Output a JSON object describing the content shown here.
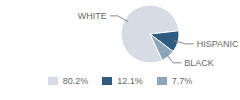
{
  "chart_data": {
    "type": "pie",
    "categories": [
      "WHITE",
      "HISPANIC",
      "BLACK"
    ],
    "values": [
      80.2,
      12.1,
      7.7
    ],
    "value_labels": [
      "80.2%",
      "12.1%",
      "7.7%"
    ],
    "colors": [
      "#d6dbe4",
      "#2f5b80",
      "#8da5bb"
    ],
    "legend": "bottom"
  }
}
